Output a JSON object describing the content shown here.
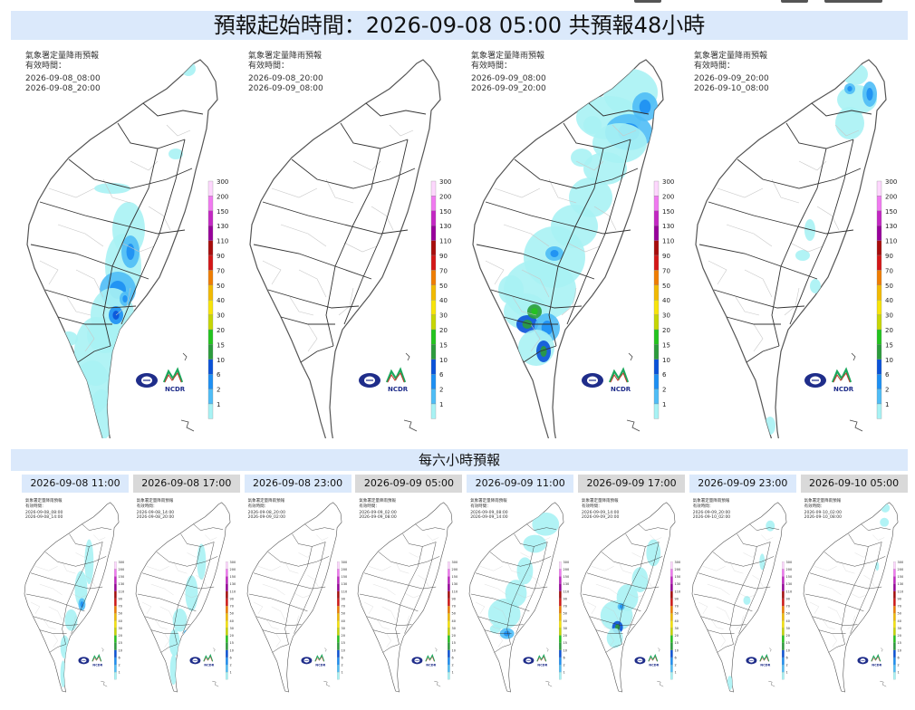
{
  "title": "預報起始時間：2026-09-08 05:00  共預報48小時",
  "map_header": "氣象署定量降雨預報",
  "valid_label": "有效時間：",
  "legend_values": [
    "300",
    "200",
    "150",
    "130",
    "110",
    "90",
    "70",
    "50",
    "40",
    "30",
    "20",
    "15",
    "10",
    "6",
    "2",
    "1"
  ],
  "legend_colors": [
    "#fdd7fd",
    "#f07af0",
    "#c327c3",
    "#98009b",
    "#a80c0c",
    "#d41717",
    "#ef7d02",
    "#f1ba02",
    "#f7e40b",
    "#c6d605",
    "#23c41e",
    "#2b9c3c",
    "#0a52d8",
    "#1d8ff3",
    "#4fbdf6",
    "#a8f2f4"
  ],
  "logos": {
    "cwa": "cwa-logo",
    "ncdr": "NCDR"
  },
  "twelve_hour_maps": [
    {
      "start": "2026-09-08_08:00",
      "end": "2026-09-08_20:00"
    },
    {
      "start": "2026-09-08_20:00",
      "end": "2026-09-09_08:00"
    },
    {
      "start": "2026-09-09_08:00",
      "end": "2026-09-09_20:00"
    },
    {
      "start": "2026-09-09_20:00",
      "end": "2026-09-10_08:00"
    }
  ],
  "subtitle": "每六小時預報",
  "six_hour_maps": [
    {
      "tab": "2026-09-08 11:00",
      "start": "2026-09-08_08:00",
      "end": "2026-09-08_14:00",
      "style": "light"
    },
    {
      "tab": "2026-09-08 17:00",
      "start": "2026-09-08_14:00",
      "end": "2026-09-08_20:00",
      "style": "dark"
    },
    {
      "tab": "2026-09-08 23:00",
      "start": "2026-09-08_20:00",
      "end": "2026-09-09_02:00",
      "style": "light"
    },
    {
      "tab": "2026-09-09 05:00",
      "start": "2026-09-09_02:00",
      "end": "2026-09-09_08:00",
      "style": "dark"
    },
    {
      "tab": "2026-09-09 11:00",
      "start": "2026-09-09_08:00",
      "end": "2026-09-09_14:00",
      "style": "light"
    },
    {
      "tab": "2026-09-09 17:00",
      "start": "2026-09-09_14:00",
      "end": "2026-09-09_20:00",
      "style": "dark"
    },
    {
      "tab": "2026-09-09 23:00",
      "start": "2026-09-09_20:00",
      "end": "2026-09-10_02:00",
      "style": "light"
    },
    {
      "tab": "2026-09-10 05:00",
      "start": "2026-09-10_02:00",
      "end": "2026-09-10_08:00",
      "style": "dark"
    }
  ]
}
